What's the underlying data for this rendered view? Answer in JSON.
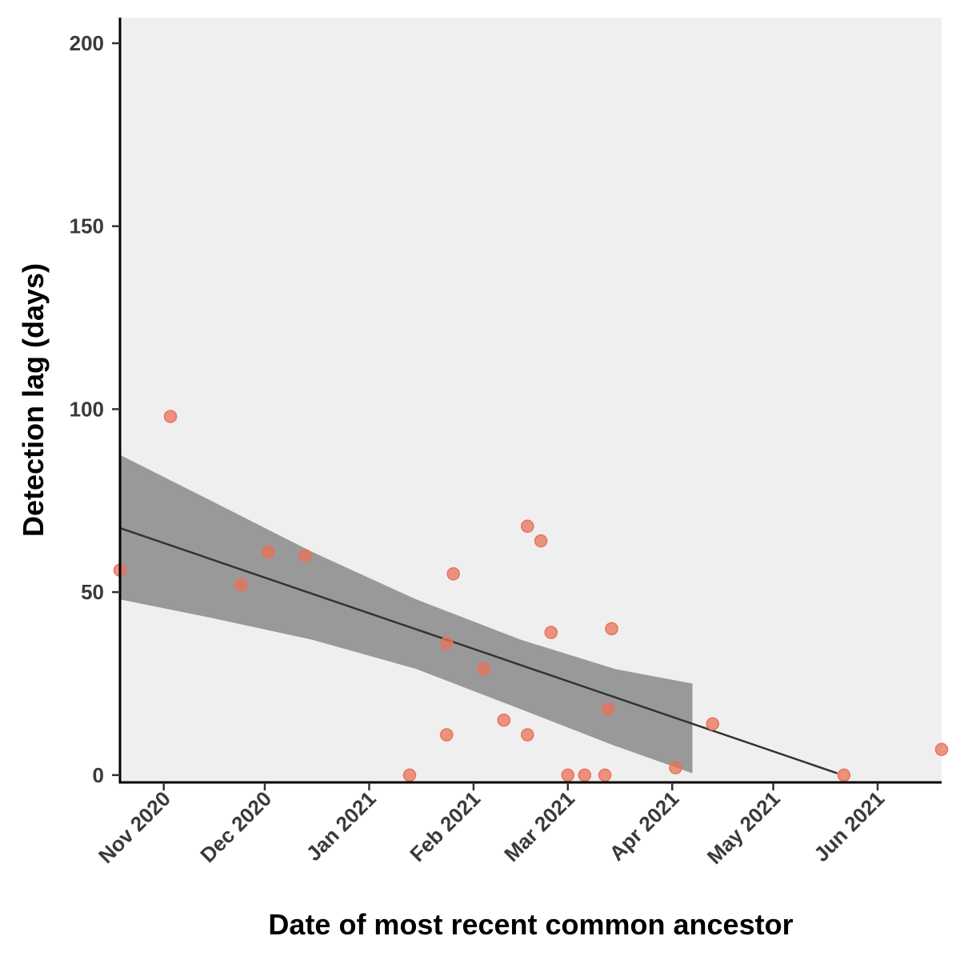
{
  "chart_data": {
    "type": "scatter",
    "title": "",
    "xlabel": "Date of most recent common ancestor",
    "ylabel": "Detection lag (days)",
    "xlim": [
      "2020-10-19",
      "2021-06-20"
    ],
    "ylim": [
      -2,
      207
    ],
    "x_ticks": [
      {
        "date": "2020-11-01",
        "label": "Nov 2020"
      },
      {
        "date": "2020-12-01",
        "label": "Dec 2020"
      },
      {
        "date": "2021-01-01",
        "label": "Jan 2021"
      },
      {
        "date": "2021-02-01",
        "label": "Feb 2021"
      },
      {
        "date": "2021-03-01",
        "label": "Mar 2021"
      },
      {
        "date": "2021-04-01",
        "label": "Apr 2021"
      },
      {
        "date": "2021-05-01",
        "label": "May 2021"
      },
      {
        "date": "2021-06-01",
        "label": "Jun 2021"
      }
    ],
    "y_ticks": [
      0,
      50,
      100,
      150,
      200
    ],
    "grid": false,
    "panel_background": "#efefef",
    "point_color": "#e8735a",
    "points": [
      {
        "x": "2020-10-19",
        "y": 56
      },
      {
        "x": "2020-11-03",
        "y": 98
      },
      {
        "x": "2020-11-24",
        "y": 52
      },
      {
        "x": "2020-12-02",
        "y": 61
      },
      {
        "x": "2020-12-13",
        "y": 60
      },
      {
        "x": "2021-01-13",
        "y": 0
      },
      {
        "x": "2021-01-24",
        "y": 36
      },
      {
        "x": "2021-01-24",
        "y": 11
      },
      {
        "x": "2021-01-26",
        "y": 55
      },
      {
        "x": "2021-02-04",
        "y": 29
      },
      {
        "x": "2021-02-10",
        "y": 15
      },
      {
        "x": "2021-02-17",
        "y": 68
      },
      {
        "x": "2021-02-17",
        "y": 11
      },
      {
        "x": "2021-02-21",
        "y": 64
      },
      {
        "x": "2021-02-24",
        "y": 39
      },
      {
        "x": "2021-03-01",
        "y": 0
      },
      {
        "x": "2021-03-06",
        "y": 0
      },
      {
        "x": "2021-03-12",
        "y": 0
      },
      {
        "x": "2021-03-13",
        "y": 18
      },
      {
        "x": "2021-03-14",
        "y": 40
      },
      {
        "x": "2021-04-02",
        "y": 2
      },
      {
        "x": "2021-04-13",
        "y": 14
      },
      {
        "x": "2021-05-22",
        "y": 0
      },
      {
        "x": "2021-06-20",
        "y": 7
      }
    ],
    "trend_line": {
      "color": "#333333",
      "points": [
        {
          "x": "2020-10-19",
          "y": 67.5
        },
        {
          "x": "2021-05-20",
          "y": 0.5
        }
      ]
    },
    "confidence_band": {
      "color": "#8a8a8a",
      "points": [
        {
          "x": "2020-10-19",
          "lower": 48,
          "upper": 87.5
        },
        {
          "x": "2020-11-15",
          "lower": 43,
          "upper": 75
        },
        {
          "x": "2020-12-15",
          "lower": 37,
          "upper": 61
        },
        {
          "x": "2021-01-15",
          "lower": 29,
          "upper": 48
        },
        {
          "x": "2021-02-15",
          "lower": 18,
          "upper": 37
        },
        {
          "x": "2021-03-15",
          "lower": 8,
          "upper": 29
        },
        {
          "x": "2021-04-07",
          "lower": 0.5,
          "upper": 25
        }
      ]
    }
  }
}
